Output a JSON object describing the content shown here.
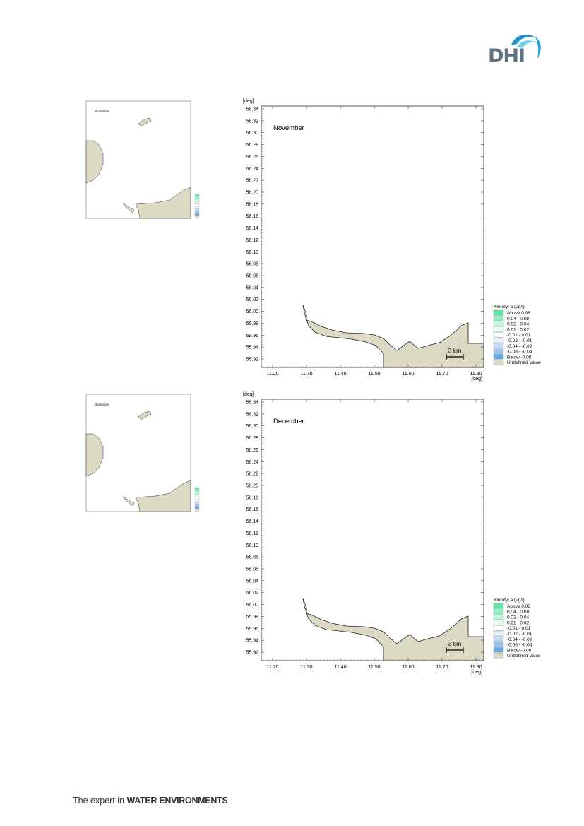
{
  "header": {
    "logo_text": "DHI",
    "colors": {
      "logo_grey": "#5d7180",
      "wave_light": "#6fd3e8",
      "wave_dark": "#1f8fc4"
    }
  },
  "maps": [
    {
      "month": "November",
      "x_unit": "[deg]",
      "y_unit": "[deg]",
      "x_ticks": [
        "11.20",
        "11.30",
        "11.40",
        "11.50",
        "11.60",
        "11.70",
        "11.80"
      ],
      "y_ticks": [
        "56.34",
        "56.32",
        "56.30",
        "56.28",
        "56.26",
        "56.24",
        "56.22",
        "56.20",
        "56.18",
        "56.16",
        "56.14",
        "56.12",
        "56.10",
        "56.08",
        "56.06",
        "56.04",
        "56.02",
        "56.00",
        "55.98",
        "55.96",
        "55.94",
        "55.92"
      ],
      "scale_bar": "3 km",
      "legend": {
        "title": "Klorofyl a (µg/l)",
        "items": [
          {
            "label": "Above  0.08",
            "color": "#5ee8a6"
          },
          {
            "label": "0.04 -  0.08",
            "color": "#8ff0c2"
          },
          {
            "label": "0.02 -  0.04",
            "color": "#bff6dd"
          },
          {
            "label": "0.01 -  0.02",
            "color": "#e4fbf0"
          },
          {
            "label": "-0.01 -  0.01",
            "color": "#ffffff"
          },
          {
            "label": "-0.02 - -0.01",
            "color": "#e4effa"
          },
          {
            "label": "-0.04 - -0.02",
            "color": "#c5dcf3"
          },
          {
            "label": "-0.08 - -0.04",
            "color": "#9bc4ec"
          },
          {
            "label": "Below -0.08",
            "color": "#6aa8e4"
          },
          {
            "label": "Undefined Value",
            "color": "#dcdac4"
          }
        ]
      }
    },
    {
      "month": "December",
      "x_unit": "[deg]",
      "y_unit": "[deg]",
      "x_ticks": [
        "11.20",
        "11.30",
        "11.40",
        "11.50",
        "11.60",
        "11.70",
        "11.80"
      ],
      "y_ticks": [
        "56.34",
        "56.32",
        "56.30",
        "56.28",
        "56.26",
        "56.24",
        "56.22",
        "56.20",
        "56.18",
        "56.16",
        "56.14",
        "56.12",
        "56.10",
        "56.08",
        "56.06",
        "56.04",
        "56.02",
        "56.00",
        "55.98",
        "55.96",
        "55.94",
        "55.92"
      ],
      "scale_bar": "3 km",
      "legend": {
        "title": "Klorofyl a (µg/l)",
        "items": [
          {
            "label": "Above  0.08",
            "color": "#5ee8a6"
          },
          {
            "label": "0.04 -  0.08",
            "color": "#8ff0c2"
          },
          {
            "label": "0.02 -  0.04",
            "color": "#bff6dd"
          },
          {
            "label": "0.01 -  0.02",
            "color": "#e4fbf0"
          },
          {
            "label": "-0.01 -  0.01",
            "color": "#ffffff"
          },
          {
            "label": "-0.02 - -0.01",
            "color": "#e4effa"
          },
          {
            "label": "-0.04 - -0.02",
            "color": "#c5dcf3"
          },
          {
            "label": "-0.08 - -0.04",
            "color": "#9bc4ec"
          },
          {
            "label": "Below -0.08",
            "color": "#6aa8e4"
          },
          {
            "label": "Undefined Value",
            "color": "#dcdac4"
          }
        ]
      }
    }
  ],
  "overview_maps": [
    {
      "month": "November"
    },
    {
      "month": "December"
    }
  ],
  "land_color": "#dcdac4",
  "footer": {
    "prefix": "The expert in ",
    "emphasis": "WATER ENVIRONMENTS"
  }
}
